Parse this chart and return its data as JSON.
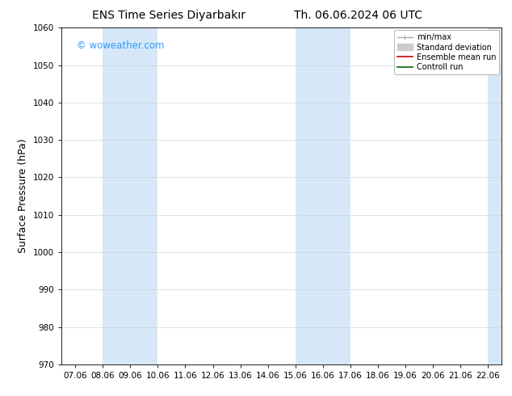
{
  "title_left": "ENS Time Series Diyarbakır",
  "title_right": "Th. 06.06.2024 06 UTC",
  "ylabel": "Surface Pressure (hPa)",
  "ylim": [
    970,
    1060
  ],
  "yticks": [
    970,
    980,
    990,
    1000,
    1010,
    1020,
    1030,
    1040,
    1050,
    1060
  ],
  "xlim_start": 6.5,
  "xlim_end": 22.5,
  "xtick_labels": [
    "07.06",
    "08.06",
    "09.06",
    "10.06",
    "11.06",
    "12.06",
    "13.06",
    "14.06",
    "15.06",
    "16.06",
    "17.06",
    "18.06",
    "19.06",
    "20.06",
    "21.06",
    "22.06"
  ],
  "xtick_positions": [
    7.0,
    8.0,
    9.0,
    10.0,
    11.0,
    12.0,
    13.0,
    14.0,
    15.0,
    16.0,
    17.0,
    18.0,
    19.0,
    20.0,
    21.0,
    22.0
  ],
  "shaded_bands": [
    {
      "x_start": 8.0,
      "x_end": 10.0
    },
    {
      "x_start": 15.0,
      "x_end": 17.0
    },
    {
      "x_start": 22.0,
      "x_end": 22.5
    }
  ],
  "shade_color": "#d6e8f7",
  "watermark_text": "© woweather.com",
  "watermark_color": "#3399ff",
  "legend_entries": [
    {
      "label": "min/max",
      "color": "#aaaaaa",
      "lw": 1.0,
      "style": "minmax"
    },
    {
      "label": "Standard deviation",
      "color": "#cccccc",
      "lw": 5,
      "style": "bar"
    },
    {
      "label": "Ensemble mean run",
      "color": "#cc0000",
      "lw": 1.2,
      "style": "line"
    },
    {
      "label": "Controll run",
      "color": "#006600",
      "lw": 1.2,
      "style": "line"
    }
  ],
  "bg_color": "#ffffff",
  "plot_bg_color": "#ffffff",
  "grid_color": "#cccccc",
  "title_fontsize": 10,
  "tick_fontsize": 7.5,
  "label_fontsize": 9
}
